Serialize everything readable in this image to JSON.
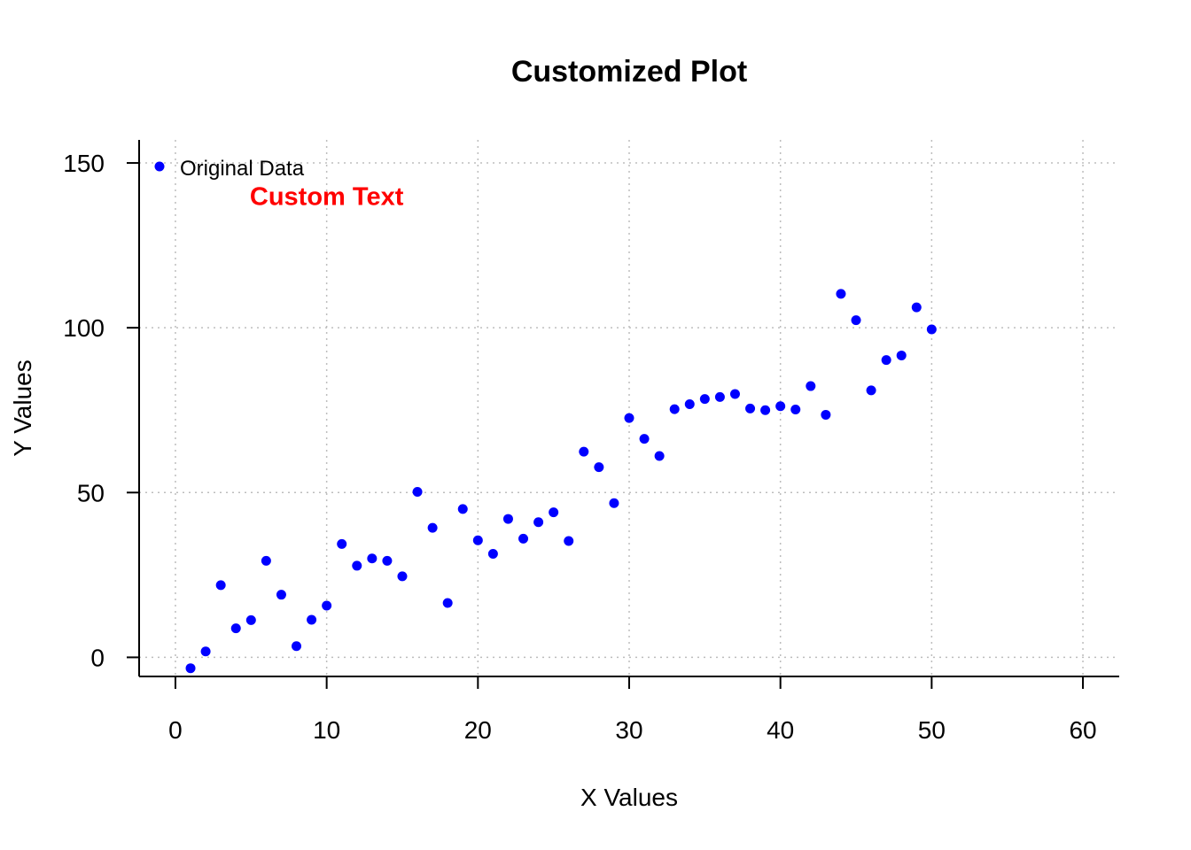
{
  "chart_data": {
    "type": "scatter",
    "title": "Customized Plot",
    "xlabel": "X Values",
    "ylabel": "Y Values",
    "xlim": [
      -2.4,
      62.4
    ],
    "ylim": [
      -5.8,
      157
    ],
    "x_ticks": [
      0,
      10,
      20,
      30,
      40,
      50,
      60
    ],
    "y_ticks": [
      0,
      50,
      100,
      150
    ],
    "x_tick_labels": [
      "0",
      "10",
      "20",
      "30",
      "40",
      "50",
      "60"
    ],
    "y_tick_labels": [
      "0",
      "50",
      "100",
      "150"
    ],
    "grid": true,
    "legend": {
      "position": "top-left",
      "entries": [
        "Original Data"
      ]
    },
    "annotation": {
      "text": "Custom Text",
      "x": 10,
      "y": 140,
      "color": "#ff0000"
    },
    "series": [
      {
        "name": "Original Data",
        "color": "#0000ff",
        "marker": "circle",
        "x": [
          1,
          2,
          3,
          4,
          5,
          6,
          7,
          8,
          9,
          10,
          11,
          12,
          13,
          14,
          15,
          16,
          17,
          18,
          19,
          20,
          21,
          22,
          23,
          24,
          25,
          26,
          27,
          28,
          29,
          30,
          31,
          32,
          33,
          34,
          35,
          36,
          37,
          38,
          39,
          40,
          41,
          42,
          43,
          44,
          45,
          46,
          47,
          48,
          49,
          50
        ],
        "y": [
          -3.3,
          1.8,
          21.9,
          8.8,
          11.3,
          29.3,
          19.0,
          3.4,
          11.4,
          15.7,
          34.4,
          27.8,
          30.0,
          29.3,
          24.6,
          50.2,
          39.3,
          16.5,
          45.0,
          35.5,
          31.4,
          42.0,
          36.0,
          41.0,
          44.0,
          35.3,
          62.4,
          57.7,
          46.8,
          72.6,
          66.3,
          61.1,
          75.3,
          76.8,
          78.4,
          79.0,
          79.9,
          75.5,
          75.0,
          76.2,
          75.2,
          82.3,
          73.6,
          110.3,
          102.3,
          81.0,
          90.2,
          91.6,
          106.2,
          99.5
        ]
      }
    ]
  }
}
